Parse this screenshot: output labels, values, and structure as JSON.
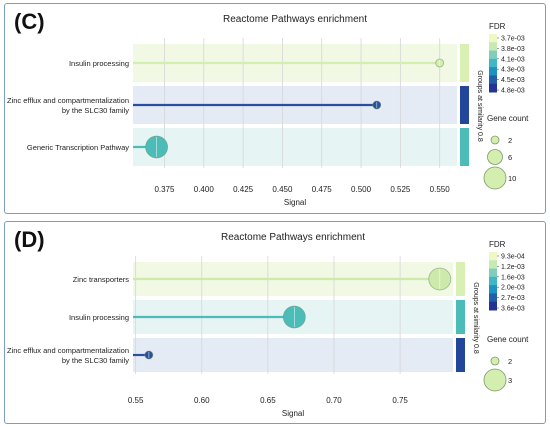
{
  "chart_data": [
    {
      "panel_label": "(C)",
      "type": "scatter",
      "title": "Reactome Pathways enrichment",
      "xlabel": "Signal",
      "xlim": [
        0.355,
        0.561
      ],
      "xticks": [
        "0.375",
        "0.400",
        "0.425",
        "0.450",
        "0.475",
        "0.500",
        "0.525",
        "0.550"
      ],
      "xtick_values": [
        0.375,
        0.4,
        0.425,
        0.45,
        0.475,
        0.5,
        0.525,
        0.55
      ],
      "grid": "vertical",
      "group_axis_label": "Groups at similarity 0.8",
      "categories": [
        "Insulin processing",
        "Zinc efflux and compartmentalization by the SLC30 family",
        "Generic Transcription Pathway"
      ],
      "category_display": [
        [
          "Insulin processing"
        ],
        [
          "Zinc efflux and compartmentalization",
          "by the SLC30 family"
        ],
        [
          "Generic Transcription Pathway"
        ]
      ],
      "signal": [
        0.55,
        0.51,
        0.37
      ],
      "gene_count": [
        2,
        2,
        10
      ],
      "fdr": [
        0.0037,
        0.0048,
        0.0041
      ],
      "colors": [
        "#d4eeb0",
        "#2a4f9c",
        "#4cbcb8"
      ],
      "band_colors": [
        "#f1f8e4",
        "#e4ebf5",
        "#e6f5f4"
      ],
      "group_bar_colors": [
        "#d8f0b4",
        "#22469a",
        "#4cbcb8"
      ],
      "legend": {
        "position": "right",
        "fdr_title": "FDR",
        "fdr_labels": [
          "3.7e-03",
          "3.8e-03",
          "4.1e-03",
          "4.3e-03",
          "4.5e-03",
          "4.8e-03"
        ],
        "fdr_colors": [
          "#edf8c4",
          "#c7e9b4",
          "#7fcdbb",
          "#41b6c4",
          "#1d91c0",
          "#225ea8",
          "#253494"
        ],
        "gene_title": "Gene count",
        "gene_labels": [
          "2",
          "6",
          "10"
        ]
      }
    },
    {
      "panel_label": "(D)",
      "type": "scatter",
      "title": "Reactome Pathways enrichment",
      "xlabel": "Signal",
      "xlim": [
        0.548,
        0.79
      ],
      "xticks": [
        "0.55",
        "0.60",
        "0.65",
        "0.70",
        "0.75"
      ],
      "xtick_values": [
        0.55,
        0.6,
        0.65,
        0.7,
        0.75
      ],
      "grid": "vertical",
      "group_axis_label": "Groups at similarity 0.8",
      "categories": [
        "Zinc transporters",
        "Insulin processing",
        "Zinc efflux and compartmentalization by the SLC30 family"
      ],
      "category_display": [
        [
          "Zinc transporters"
        ],
        [
          "Insulin processing"
        ],
        [
          "Zinc efflux and compartmentalization",
          "by the SLC30 family"
        ]
      ],
      "signal": [
        0.78,
        0.67,
        0.56
      ],
      "gene_count": [
        3,
        3,
        2
      ],
      "fdr": [
        0.00093,
        0.0016,
        0.0036
      ],
      "colors": [
        "#cde9ab",
        "#4cbcb8",
        "#2a4f9c"
      ],
      "band_colors": [
        "#f1f8e4",
        "#e6f5f4",
        "#e4ebf5"
      ],
      "group_bar_colors": [
        "#d8f0b4",
        "#4cbcb8",
        "#22469a"
      ],
      "legend": {
        "position": "right",
        "fdr_title": "FDR",
        "fdr_labels": [
          "9.3e-04",
          "1.2e-03",
          "1.6e-03",
          "2.0e-03",
          "2.7e-03",
          "3.6e-03"
        ],
        "fdr_colors": [
          "#edf8c4",
          "#c7e9b4",
          "#7fcdbb",
          "#41b6c4",
          "#1d91c0",
          "#225ea8",
          "#253494"
        ],
        "gene_title": "Gene count",
        "gene_labels": [
          "2",
          "3"
        ]
      }
    }
  ]
}
